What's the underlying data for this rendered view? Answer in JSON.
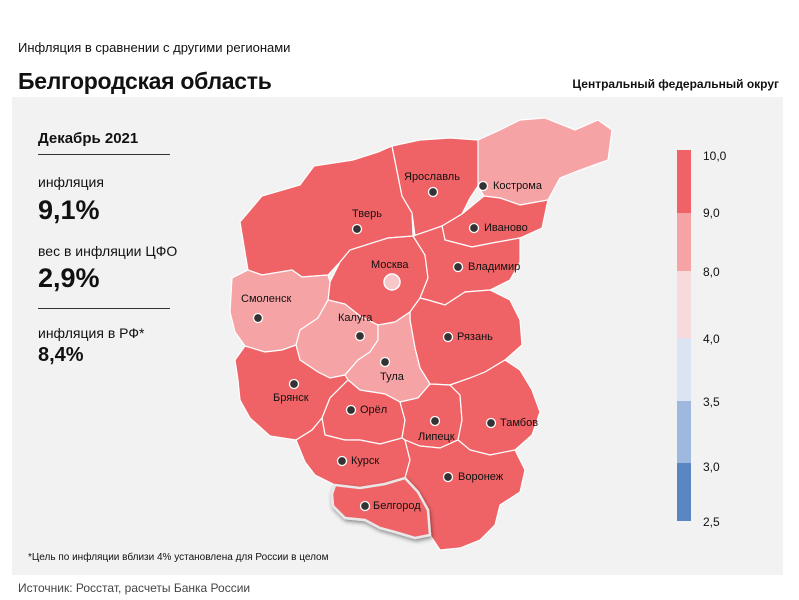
{
  "header": {
    "subtitle": "Инфляция в сравнении с другими регионами",
    "title": "Белгородская область",
    "district": "Центральный федеральный округ"
  },
  "stats": {
    "period": "Декабрь 2021",
    "inflation_label": "инфляция",
    "inflation_value": "9,1%",
    "weight_label": "вес в инфляции ЦФО",
    "weight_value": "2,9%",
    "rf_label": "инфляция в РФ*",
    "rf_value": "8,4%"
  },
  "footnote": "*Цель по инфляции вблизи 4% установлена для России в целом",
  "source": "Источник: Росстат, расчеты Банка России",
  "colors": {
    "high": "#ef6366",
    "mid": "#f6a3a5",
    "light": "#f8dadc",
    "blue_light": "#dbe4f2",
    "blue_mid": "#9fb8dd",
    "blue_dark": "#5b86c4",
    "selected": "#ef6366"
  },
  "scale": {
    "labels": [
      "10,0",
      "9,0",
      "8,0",
      "4,0",
      "3,5",
      "3,0",
      "2,5"
    ]
  },
  "regions": [
    {
      "name": "Ярославль",
      "level": "high"
    },
    {
      "name": "Кострома",
      "level": "mid"
    },
    {
      "name": "Тверь",
      "level": "high"
    },
    {
      "name": "Иваново",
      "level": "high"
    },
    {
      "name": "Москва",
      "level": "high"
    },
    {
      "name": "Владимир",
      "level": "high"
    },
    {
      "name": "Смоленск",
      "level": "mid"
    },
    {
      "name": "Калуга",
      "level": "mid"
    },
    {
      "name": "Рязань",
      "level": "high"
    },
    {
      "name": "Тула",
      "level": "mid"
    },
    {
      "name": "Брянск",
      "level": "high"
    },
    {
      "name": "Орёл",
      "level": "high"
    },
    {
      "name": "Липецк",
      "level": "high"
    },
    {
      "name": "Тамбов",
      "level": "high"
    },
    {
      "name": "Курск",
      "level": "high"
    },
    {
      "name": "Воронеж",
      "level": "high"
    },
    {
      "name": "Белгород",
      "level": "high"
    }
  ]
}
